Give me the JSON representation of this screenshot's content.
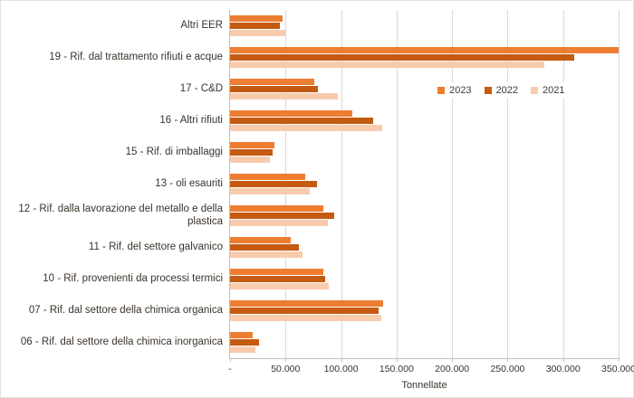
{
  "chart_data": {
    "type": "bar",
    "orientation": "horizontal",
    "title": "",
    "xlabel": "Tonnellate",
    "ylabel": "",
    "xlim": [
      0,
      350000
    ],
    "grid": true,
    "legend_position": "right-center",
    "x_ticks": [
      "-",
      "50.000",
      "100.000",
      "150.000",
      "200.000",
      "250.000",
      "300.000",
      "350.000"
    ],
    "categories": [
      "Altri EER",
      "19 - Rif. dal trattamento rifiuti e acque",
      "17 - C&D",
      "16 - Altri rifiuti",
      "15 - Rif. di imballaggi",
      "13 - oli esauriti",
      "12 - Rif. dalla lavorazione del metallo e della plastica",
      "11 - Rif. del settore galvanico",
      "10 - Rif. provenienti da processi termici",
      "07 - Rif. dal settore della chimica organica",
      "06 - Rif. dal settore della chimica inorganica"
    ],
    "series": [
      {
        "name": "2023",
        "color": "#ED7D31",
        "values": [
          47000,
          350000,
          76000,
          110000,
          40000,
          68000,
          84000,
          55000,
          84000,
          138000,
          20000
        ]
      },
      {
        "name": "2022",
        "color": "#C55A11",
        "values": [
          45000,
          310000,
          79000,
          129000,
          38000,
          78000,
          94000,
          62000,
          86000,
          134000,
          26000
        ]
      },
      {
        "name": "2021",
        "color": "#F8CBAD",
        "values": [
          50000,
          283000,
          97000,
          137000,
          36000,
          72000,
          88000,
          65000,
          89000,
          136000,
          23000
        ]
      }
    ]
  }
}
